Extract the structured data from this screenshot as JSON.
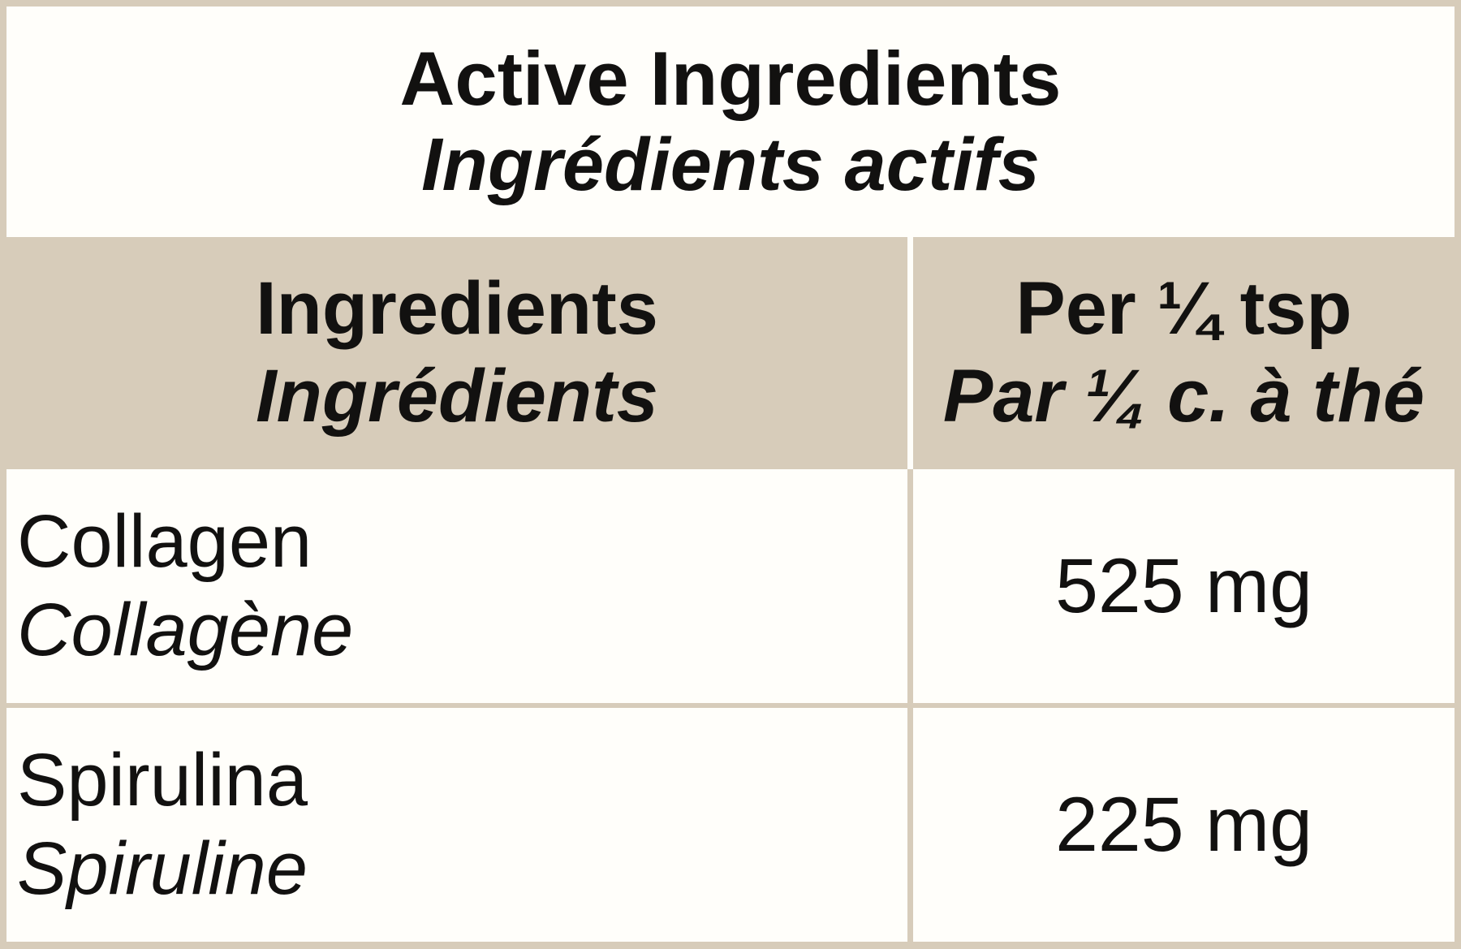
{
  "colors": {
    "border_and_header_tan": "#d7ccba",
    "surface_white": "#fffefa",
    "text_black": "#121110"
  },
  "title": {
    "en": "Active Ingredients",
    "fr": "Ingrédients actifs"
  },
  "header": {
    "ingredients_en": "Ingredients",
    "ingredients_fr": "Ingrédients",
    "per_serving_en": "Per ¼ tsp",
    "per_serving_fr": "Par ¼ c. à thé"
  },
  "rows": [
    {
      "name_en": "Collagen",
      "name_fr": "Collagène",
      "amount": "525 mg"
    },
    {
      "name_en": "Spirulina",
      "name_fr": "Spiruline",
      "amount": "225 mg"
    }
  ]
}
